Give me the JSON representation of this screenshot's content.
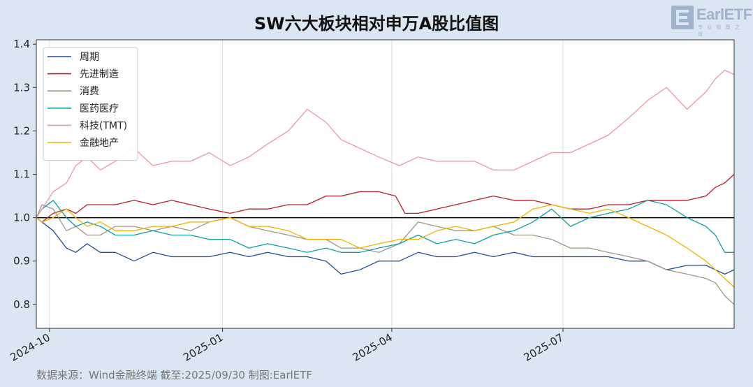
{
  "header": {
    "title": "SW六大板块相对申万A股比值图",
    "logo_text": "EarlETF",
    "logo_sub": "专 业 投 基 之 道"
  },
  "footer": {
    "source": "数据来源：Wind金融终端 截至:2025/09/30 制图:EarlETF"
  },
  "chart_data": {
    "type": "line",
    "title": "SW六大板块相对申万A股比值图",
    "xlabel": "",
    "ylabel": "",
    "xlim": [
      "2024-09-24",
      "2025-09-30"
    ],
    "ylim": [
      0.745,
      1.41
    ],
    "yticks": [
      0.8,
      0.9,
      1.0,
      1.1,
      1.2,
      1.3,
      1.4
    ],
    "ytick_labels": [
      "0.8",
      "0.9",
      "1.0",
      "1.1",
      "1.2",
      "1.3",
      "1.4"
    ],
    "xticks": [
      "2024-10-01",
      "2025-01-01",
      "2025-04-01",
      "2025-07-01"
    ],
    "xtick_labels": [
      "2024-10",
      "2025-01",
      "2025-04",
      "2025-07"
    ],
    "reference_line": 1.0,
    "grid": "vertical",
    "legend_position": "top-left",
    "series": [
      {
        "name": "周期",
        "color": "#1f4e9c",
        "x": [
          "2024-09-24",
          "2024-09-27",
          "2024-10-03",
          "2024-10-10",
          "2024-10-15",
          "2024-10-21",
          "2024-10-28",
          "2024-11-05",
          "2024-11-15",
          "2024-11-25",
          "2024-12-05",
          "2024-12-15",
          "2024-12-25",
          "2025-01-05",
          "2025-01-15",
          "2025-01-25",
          "2025-02-05",
          "2025-02-15",
          "2025-02-25",
          "2025-03-05",
          "2025-03-15",
          "2025-03-25",
          "2025-04-05",
          "2025-04-15",
          "2025-04-25",
          "2025-05-05",
          "2025-05-15",
          "2025-05-25",
          "2025-06-05",
          "2025-06-15",
          "2025-06-25",
          "2025-07-05",
          "2025-07-15",
          "2025-07-25",
          "2025-08-05",
          "2025-08-15",
          "2025-08-25",
          "2025-09-05",
          "2025-09-15",
          "2025-09-20",
          "2025-09-25",
          "2025-09-30"
        ],
        "values": [
          1.0,
          0.99,
          0.97,
          0.93,
          0.92,
          0.94,
          0.92,
          0.92,
          0.9,
          0.92,
          0.91,
          0.91,
          0.91,
          0.92,
          0.91,
          0.92,
          0.91,
          0.91,
          0.9,
          0.87,
          0.88,
          0.9,
          0.9,
          0.92,
          0.91,
          0.91,
          0.92,
          0.91,
          0.92,
          0.91,
          0.91,
          0.91,
          0.91,
          0.91,
          0.9,
          0.9,
          0.88,
          0.89,
          0.89,
          0.88,
          0.87,
          0.88
        ]
      },
      {
        "name": "先进制造",
        "color": "#b81e28",
        "x": [
          "2024-09-24",
          "2024-09-27",
          "2024-10-03",
          "2024-10-10",
          "2024-10-15",
          "2024-10-21",
          "2024-10-28",
          "2024-11-05",
          "2024-11-15",
          "2024-11-25",
          "2024-12-05",
          "2024-12-15",
          "2024-12-25",
          "2025-01-05",
          "2025-01-15",
          "2025-01-25",
          "2025-02-05",
          "2025-02-15",
          "2025-02-25",
          "2025-03-05",
          "2025-03-15",
          "2025-03-25",
          "2025-04-03",
          "2025-04-08",
          "2025-04-15",
          "2025-04-25",
          "2025-05-05",
          "2025-05-15",
          "2025-05-25",
          "2025-06-05",
          "2025-06-15",
          "2025-06-25",
          "2025-07-05",
          "2025-07-15",
          "2025-07-25",
          "2025-08-05",
          "2025-08-15",
          "2025-08-25",
          "2025-09-05",
          "2025-09-15",
          "2025-09-20",
          "2025-09-25",
          "2025-09-30"
        ],
        "values": [
          1.0,
          0.99,
          1.01,
          1.02,
          1.01,
          1.03,
          1.03,
          1.03,
          1.04,
          1.03,
          1.04,
          1.03,
          1.02,
          1.01,
          1.02,
          1.02,
          1.03,
          1.03,
          1.05,
          1.05,
          1.06,
          1.06,
          1.05,
          1.01,
          1.01,
          1.02,
          1.03,
          1.04,
          1.05,
          1.04,
          1.04,
          1.03,
          1.02,
          1.02,
          1.03,
          1.03,
          1.04,
          1.04,
          1.04,
          1.05,
          1.07,
          1.08,
          1.1
        ]
      },
      {
        "name": "消费",
        "color": "#a09585",
        "x": [
          "2024-09-24",
          "2024-09-27",
          "2024-10-03",
          "2024-10-10",
          "2024-10-15",
          "2024-10-21",
          "2024-10-28",
          "2024-11-05",
          "2024-11-15",
          "2024-11-25",
          "2024-12-05",
          "2024-12-15",
          "2024-12-25",
          "2025-01-05",
          "2025-01-15",
          "2025-01-25",
          "2025-02-05",
          "2025-02-15",
          "2025-02-25",
          "2025-03-05",
          "2025-03-15",
          "2025-03-25",
          "2025-04-05",
          "2025-04-15",
          "2025-04-25",
          "2025-05-05",
          "2025-05-15",
          "2025-05-25",
          "2025-06-05",
          "2025-06-15",
          "2025-06-25",
          "2025-07-05",
          "2025-07-15",
          "2025-07-25",
          "2025-08-05",
          "2025-08-15",
          "2025-08-25",
          "2025-09-05",
          "2025-09-15",
          "2025-09-20",
          "2025-09-25",
          "2025-09-30"
        ],
        "values": [
          1.0,
          1.03,
          1.02,
          0.97,
          0.98,
          0.96,
          0.96,
          0.98,
          0.98,
          0.97,
          0.98,
          0.97,
          0.99,
          1.0,
          0.98,
          0.97,
          0.96,
          0.95,
          0.95,
          0.93,
          0.93,
          0.92,
          0.94,
          0.99,
          0.98,
          0.97,
          0.97,
          0.98,
          0.96,
          0.96,
          0.95,
          0.93,
          0.93,
          0.92,
          0.91,
          0.9,
          0.88,
          0.87,
          0.86,
          0.85,
          0.82,
          0.8
        ]
      },
      {
        "name": "医药医疗",
        "color": "#11a0a0",
        "x": [
          "2024-09-24",
          "2024-09-27",
          "2024-10-03",
          "2024-10-10",
          "2024-10-15",
          "2024-10-21",
          "2024-10-28",
          "2024-11-05",
          "2024-11-15",
          "2024-11-25",
          "2024-12-05",
          "2024-12-15",
          "2024-12-25",
          "2025-01-05",
          "2025-01-15",
          "2025-01-25",
          "2025-02-05",
          "2025-02-15",
          "2025-02-25",
          "2025-03-05",
          "2025-03-15",
          "2025-03-25",
          "2025-04-05",
          "2025-04-15",
          "2025-04-25",
          "2025-05-05",
          "2025-05-15",
          "2025-05-25",
          "2025-06-05",
          "2025-06-15",
          "2025-06-25",
          "2025-07-05",
          "2025-07-15",
          "2025-07-25",
          "2025-08-05",
          "2025-08-15",
          "2025-08-25",
          "2025-09-05",
          "2025-09-15",
          "2025-09-20",
          "2025-09-25",
          "2025-09-30"
        ],
        "values": [
          1.0,
          1.02,
          1.04,
          1.0,
          0.98,
          0.99,
          0.98,
          0.96,
          0.96,
          0.97,
          0.96,
          0.96,
          0.95,
          0.95,
          0.93,
          0.94,
          0.93,
          0.92,
          0.93,
          0.92,
          0.92,
          0.93,
          0.94,
          0.96,
          0.94,
          0.95,
          0.94,
          0.96,
          0.97,
          0.99,
          1.02,
          0.98,
          1.0,
          1.01,
          1.02,
          1.04,
          1.03,
          1.0,
          0.98,
          0.96,
          0.92,
          0.92
        ]
      },
      {
        "name": "科技(TMT)",
        "color": "#e89aa0",
        "x": [
          "2024-09-24",
          "2024-09-27",
          "2024-10-03",
          "2024-10-10",
          "2024-10-15",
          "2024-10-21",
          "2024-10-28",
          "2024-11-05",
          "2024-11-15",
          "2024-11-25",
          "2024-12-05",
          "2024-12-15",
          "2024-12-25",
          "2025-01-05",
          "2025-01-15",
          "2025-01-25",
          "2025-02-05",
          "2025-02-15",
          "2025-02-25",
          "2025-03-05",
          "2025-03-15",
          "2025-03-25",
          "2025-04-05",
          "2025-04-15",
          "2025-04-25",
          "2025-05-05",
          "2025-05-15",
          "2025-05-25",
          "2025-06-05",
          "2025-06-15",
          "2025-06-25",
          "2025-07-05",
          "2025-07-15",
          "2025-07-25",
          "2025-08-05",
          "2025-08-15",
          "2025-08-25",
          "2025-09-05",
          "2025-09-10",
          "2025-09-15",
          "2025-09-20",
          "2025-09-25",
          "2025-09-30"
        ],
        "values": [
          1.0,
          1.02,
          1.06,
          1.08,
          1.12,
          1.14,
          1.11,
          1.13,
          1.16,
          1.12,
          1.13,
          1.13,
          1.15,
          1.12,
          1.14,
          1.17,
          1.2,
          1.25,
          1.22,
          1.18,
          1.16,
          1.14,
          1.12,
          1.14,
          1.13,
          1.13,
          1.13,
          1.11,
          1.11,
          1.13,
          1.15,
          1.15,
          1.17,
          1.19,
          1.23,
          1.27,
          1.3,
          1.25,
          1.27,
          1.29,
          1.32,
          1.34,
          1.33
        ]
      },
      {
        "name": "金融地产",
        "color": "#f0b400",
        "x": [
          "2024-09-24",
          "2024-09-27",
          "2024-10-03",
          "2024-10-10",
          "2024-10-15",
          "2024-10-21",
          "2024-10-28",
          "2024-11-05",
          "2024-11-15",
          "2024-11-25",
          "2024-12-05",
          "2024-12-15",
          "2024-12-25",
          "2025-01-05",
          "2025-01-15",
          "2025-01-25",
          "2025-02-05",
          "2025-02-15",
          "2025-02-25",
          "2025-03-05",
          "2025-03-15",
          "2025-03-25",
          "2025-04-05",
          "2025-04-15",
          "2025-04-25",
          "2025-05-05",
          "2025-05-15",
          "2025-05-25",
          "2025-06-05",
          "2025-06-15",
          "2025-06-25",
          "2025-07-05",
          "2025-07-15",
          "2025-07-25",
          "2025-08-05",
          "2025-08-15",
          "2025-08-25",
          "2025-09-05",
          "2025-09-15",
          "2025-09-20",
          "2025-09-25",
          "2025-09-30"
        ],
        "values": [
          1.0,
          0.99,
          1.0,
          1.02,
          1.0,
          0.98,
          0.99,
          0.97,
          0.97,
          0.98,
          0.98,
          0.99,
          0.99,
          1.0,
          0.98,
          0.98,
          0.97,
          0.95,
          0.95,
          0.95,
          0.93,
          0.94,
          0.95,
          0.95,
          0.97,
          0.98,
          0.97,
          0.98,
          0.99,
          1.02,
          1.03,
          1.02,
          1.01,
          1.02,
          1.0,
          0.98,
          0.96,
          0.93,
          0.9,
          0.88,
          0.86,
          0.84
        ]
      }
    ]
  }
}
